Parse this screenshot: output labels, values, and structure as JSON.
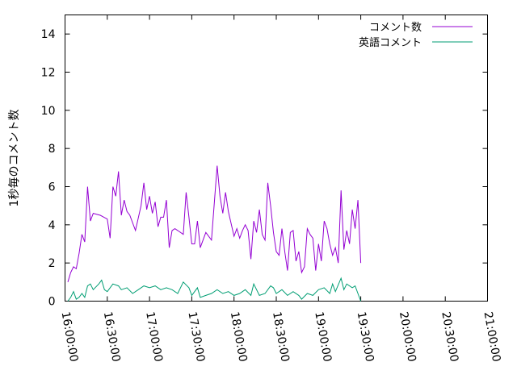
{
  "chart_data": {
    "type": "line",
    "ylabel": "1秒毎のコメント数",
    "xlabel": "",
    "ylim": [
      0,
      15
    ],
    "y_ticks": [
      "0",
      "2",
      "4",
      "6",
      "8",
      "10",
      "12",
      "14"
    ],
    "x_range": [
      "16:00:00",
      "21:00:00"
    ],
    "x_ticks": [
      "16:00:00",
      "16:30:00",
      "17:00:00",
      "17:30:00",
      "18:00:00",
      "18:30:00",
      "19:00:00",
      "19:30:00",
      "20:00:00",
      "20:30:00",
      "21:00:00"
    ],
    "legend_position": "top-right",
    "grid": false,
    "series": [
      {
        "name": "コメント数",
        "color": "#9400d3",
        "points": [
          [
            "16:02:00",
            1.0
          ],
          [
            "16:04:00",
            1.5
          ],
          [
            "16:06:00",
            1.8
          ],
          [
            "16:08:00",
            1.7
          ],
          [
            "16:10:00",
            2.5
          ],
          [
            "16:12:00",
            3.5
          ],
          [
            "16:14:00",
            3.1
          ],
          [
            "16:16:00",
            6.0
          ],
          [
            "16:18:00",
            4.2
          ],
          [
            "16:20:00",
            4.6
          ],
          [
            "16:25:00",
            4.5
          ],
          [
            "16:30:00",
            4.3
          ],
          [
            "16:32:00",
            3.3
          ],
          [
            "16:34:00",
            6.0
          ],
          [
            "16:36:00",
            5.5
          ],
          [
            "16:38:00",
            6.8
          ],
          [
            "16:40:00",
            4.5
          ],
          [
            "16:42:00",
            5.3
          ],
          [
            "16:44:00",
            4.7
          ],
          [
            "16:46:00",
            4.5
          ],
          [
            "16:50:00",
            3.7
          ],
          [
            "16:54:00",
            5.0
          ],
          [
            "16:56:00",
            6.2
          ],
          [
            "16:58:00",
            4.8
          ],
          [
            "17:00:00",
            5.5
          ],
          [
            "17:02:00",
            4.6
          ],
          [
            "17:04:00",
            5.2
          ],
          [
            "17:06:00",
            3.9
          ],
          [
            "17:08:00",
            4.4
          ],
          [
            "17:10:00",
            4.4
          ],
          [
            "17:12:00",
            5.3
          ],
          [
            "17:14:00",
            2.8
          ],
          [
            "17:16:00",
            3.7
          ],
          [
            "17:18:00",
            3.8
          ],
          [
            "17:20:00",
            3.7
          ],
          [
            "17:24:00",
            3.5
          ],
          [
            "17:26:00",
            5.7
          ],
          [
            "17:28:00",
            4.4
          ],
          [
            "17:30:00",
            3.0
          ],
          [
            "17:32:00",
            3.0
          ],
          [
            "17:34:00",
            4.2
          ],
          [
            "17:36:00",
            2.8
          ],
          [
            "17:40:00",
            3.6
          ],
          [
            "17:44:00",
            3.2
          ],
          [
            "17:48:00",
            7.1
          ],
          [
            "17:50:00",
            5.5
          ],
          [
            "17:52:00",
            4.6
          ],
          [
            "17:54:00",
            5.7
          ],
          [
            "17:56:00",
            4.7
          ],
          [
            "18:00:00",
            3.4
          ],
          [
            "18:02:00",
            3.8
          ],
          [
            "18:04:00",
            3.3
          ],
          [
            "18:06:00",
            3.7
          ],
          [
            "18:08:00",
            4.0
          ],
          [
            "18:10:00",
            3.7
          ],
          [
            "18:12:00",
            2.2
          ],
          [
            "18:14:00",
            4.2
          ],
          [
            "18:16:00",
            3.6
          ],
          [
            "18:18:00",
            4.8
          ],
          [
            "18:20:00",
            3.5
          ],
          [
            "18:22:00",
            3.2
          ],
          [
            "18:24:00",
            6.2
          ],
          [
            "18:26:00",
            5.0
          ],
          [
            "18:28:00",
            3.6
          ],
          [
            "18:30:00",
            2.6
          ],
          [
            "18:32:00",
            2.4
          ],
          [
            "18:34:00",
            3.8
          ],
          [
            "18:36:00",
            2.6
          ],
          [
            "18:38:00",
            1.6
          ],
          [
            "18:40:00",
            3.6
          ],
          [
            "18:42:00",
            3.7
          ],
          [
            "18:44:00",
            2.1
          ],
          [
            "18:46:00",
            2.6
          ],
          [
            "18:48:00",
            1.5
          ],
          [
            "18:50:00",
            1.8
          ],
          [
            "18:52:00",
            3.8
          ],
          [
            "18:54:00",
            3.5
          ],
          [
            "18:56:00",
            3.3
          ],
          [
            "18:58:00",
            1.6
          ],
          [
            "19:00:00",
            3.0
          ],
          [
            "19:02:00",
            2.1
          ],
          [
            "19:04:00",
            4.2
          ],
          [
            "19:06:00",
            3.8
          ],
          [
            "19:08:00",
            3.0
          ],
          [
            "19:10:00",
            2.4
          ],
          [
            "19:12:00",
            2.8
          ],
          [
            "19:14:00",
            2.0
          ],
          [
            "19:16:00",
            5.8
          ],
          [
            "19:18:00",
            2.7
          ],
          [
            "19:20:00",
            3.7
          ],
          [
            "19:22:00",
            3.0
          ],
          [
            "19:24:00",
            4.8
          ],
          [
            "19:26:00",
            3.8
          ],
          [
            "19:28:00",
            5.3
          ],
          [
            "19:30:00",
            2.0
          ]
        ]
      },
      {
        "name": "英語コメント",
        "color": "#009e73",
        "points": [
          [
            "16:02:00",
            0.0
          ],
          [
            "16:04:00",
            0.2
          ],
          [
            "16:06:00",
            0.5
          ],
          [
            "16:08:00",
            0.1
          ],
          [
            "16:10:00",
            0.2
          ],
          [
            "16:12:00",
            0.4
          ],
          [
            "16:14:00",
            0.2
          ],
          [
            "16:16:00",
            0.8
          ],
          [
            "16:18:00",
            0.9
          ],
          [
            "16:20:00",
            0.6
          ],
          [
            "16:24:00",
            0.9
          ],
          [
            "16:26:00",
            1.1
          ],
          [
            "16:28:00",
            0.6
          ],
          [
            "16:30:00",
            0.5
          ],
          [
            "16:34:00",
            0.9
          ],
          [
            "16:38:00",
            0.8
          ],
          [
            "16:40:00",
            0.6
          ],
          [
            "16:44:00",
            0.7
          ],
          [
            "16:48:00",
            0.4
          ],
          [
            "16:52:00",
            0.6
          ],
          [
            "16:56:00",
            0.8
          ],
          [
            "17:00:00",
            0.7
          ],
          [
            "17:04:00",
            0.8
          ],
          [
            "17:08:00",
            0.6
          ],
          [
            "17:12:00",
            0.7
          ],
          [
            "17:16:00",
            0.6
          ],
          [
            "17:20:00",
            0.4
          ],
          [
            "17:24:00",
            1.0
          ],
          [
            "17:28:00",
            0.7
          ],
          [
            "17:30:00",
            0.3
          ],
          [
            "17:34:00",
            0.7
          ],
          [
            "17:36:00",
            0.2
          ],
          [
            "17:40:00",
            0.3
          ],
          [
            "17:44:00",
            0.4
          ],
          [
            "17:48:00",
            0.6
          ],
          [
            "17:52:00",
            0.4
          ],
          [
            "17:56:00",
            0.5
          ],
          [
            "18:00:00",
            0.3
          ],
          [
            "18:04:00",
            0.4
          ],
          [
            "18:08:00",
            0.6
          ],
          [
            "18:12:00",
            0.3
          ],
          [
            "18:14:00",
            0.9
          ],
          [
            "18:18:00",
            0.3
          ],
          [
            "18:22:00",
            0.4
          ],
          [
            "18:26:00",
            0.8
          ],
          [
            "18:28:00",
            0.7
          ],
          [
            "18:30:00",
            0.4
          ],
          [
            "18:34:00",
            0.6
          ],
          [
            "18:38:00",
            0.3
          ],
          [
            "18:42:00",
            0.5
          ],
          [
            "18:46:00",
            0.3
          ],
          [
            "18:48:00",
            0.1
          ],
          [
            "18:52:00",
            0.4
          ],
          [
            "18:56:00",
            0.3
          ],
          [
            "19:00:00",
            0.6
          ],
          [
            "19:04:00",
            0.7
          ],
          [
            "19:08:00",
            0.4
          ],
          [
            "19:10:00",
            0.9
          ],
          [
            "19:12:00",
            0.5
          ],
          [
            "19:16:00",
            1.2
          ],
          [
            "19:18:00",
            0.6
          ],
          [
            "19:20:00",
            0.9
          ],
          [
            "19:24:00",
            0.7
          ],
          [
            "19:26:00",
            0.8
          ],
          [
            "19:30:00",
            0.0
          ]
        ]
      }
    ]
  }
}
